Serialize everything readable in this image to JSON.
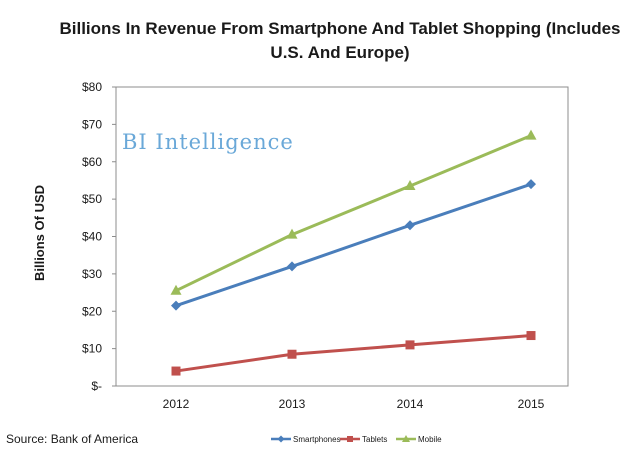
{
  "chart_data": {
    "type": "line",
    "title_line1": "Billions In Revenue From Smartphone And Tablet Shopping (Includes",
    "title_line2": "U.S. And Europe)",
    "ylabel": "Billions Of USD",
    "xlabel": "",
    "categories": [
      "2012",
      "2013",
      "2014",
      "2015"
    ],
    "ylim": [
      0,
      80
    ],
    "y_ticks": [
      0,
      10,
      20,
      30,
      40,
      50,
      60,
      70,
      80
    ],
    "y_tick_labels": [
      "$-",
      "$10",
      "$20",
      "$30",
      "$40",
      "$50",
      "$60",
      "$70",
      "$80"
    ],
    "grid": false,
    "legend_position": "bottom",
    "series": [
      {
        "name": "Smartphones",
        "color": "#4a7ebb",
        "marker": "diamond",
        "values": [
          21.5,
          32,
          43,
          54
        ]
      },
      {
        "name": "Tablets",
        "color": "#c0504d",
        "marker": "square",
        "values": [
          4,
          8.5,
          11,
          13.5
        ]
      },
      {
        "name": "Mobile",
        "color": "#9bbb59",
        "marker": "triangle",
        "values": [
          25.5,
          40.5,
          53.5,
          67
        ]
      }
    ]
  },
  "watermark": {
    "text": "BI Intelligence",
    "color": "#6aa8d8"
  },
  "source": "Source: Bank of America"
}
